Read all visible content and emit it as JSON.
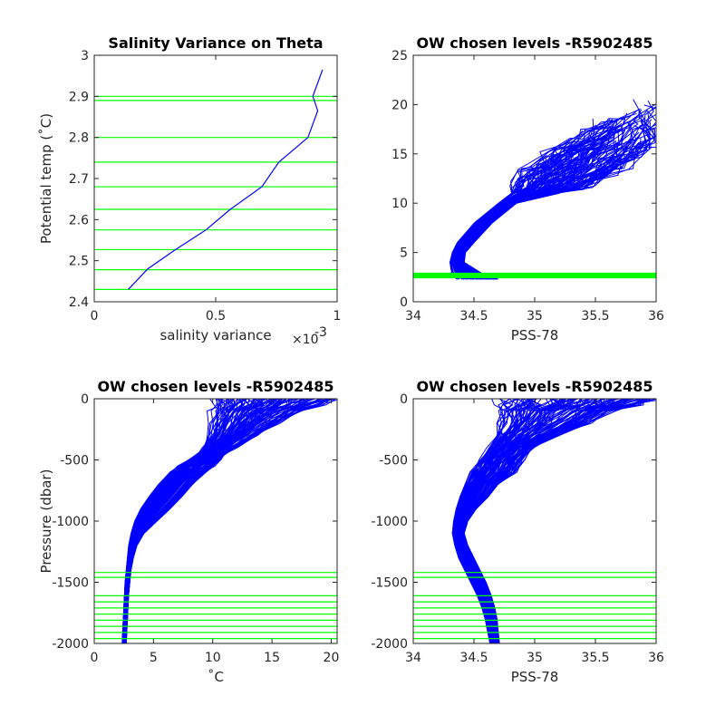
{
  "figure": {
    "colors": {
      "profile": "#0000ff",
      "level": "#00ff00",
      "axes": "#262626",
      "background": "#ffffff"
    }
  },
  "chart_data": [
    {
      "type": "line",
      "title": "Salinity Variance on Theta",
      "xlabel": "salinity variance",
      "x_exponent_label": "×10",
      "x_exponent_power": "-3",
      "ylabel": "Potential temp (˚C)",
      "xlim": [
        0,
        1
      ],
      "ylim": [
        2.4,
        3.0
      ],
      "xticks": [
        0,
        0.5,
        1
      ],
      "xtick_labels": [
        "0",
        "0.5",
        "1"
      ],
      "yticks": [
        2.4,
        2.5,
        2.6,
        2.7,
        2.8,
        2.9,
        3.0
      ],
      "ytick_labels": [
        "2.4",
        "2.5",
        "2.6",
        "2.7",
        "2.8",
        "2.9",
        "3"
      ],
      "series": [
        {
          "x": [
            0.14,
            0.22,
            0.33,
            0.46,
            0.56,
            0.69,
            0.76,
            0.88,
            0.92,
            0.9,
            0.94
          ],
          "y": [
            2.43,
            2.48,
            2.525,
            2.575,
            2.625,
            2.68,
            2.74,
            2.8,
            2.865,
            2.9,
            2.965
          ]
        }
      ],
      "chosen_levels": [
        2.43,
        2.478,
        2.527,
        2.575,
        2.625,
        2.68,
        2.74,
        2.8,
        2.89,
        2.9
      ]
    },
    {
      "type": "line",
      "title": "OW chosen levels -R5902485",
      "xlabel": "PSS-78",
      "ylabel": "",
      "xlim": [
        34,
        36
      ],
      "ylim": [
        0,
        25
      ],
      "xticks": [
        34,
        34.5,
        35,
        35.5,
        36
      ],
      "xtick_labels": [
        "34",
        "34.5",
        "35",
        "35.5",
        "36"
      ],
      "yticks": [
        0,
        5,
        10,
        15,
        20,
        25
      ],
      "ytick_labels": [
        "0",
        "5",
        "10",
        "15",
        "20",
        "25"
      ],
      "profile_envelope": {
        "T": [
          2.3,
          2.6,
          3.0,
          4.0,
          5.0,
          6.0,
          8.0,
          10.0,
          11.0,
          12.0,
          13.0,
          14.0,
          15.0,
          16.0,
          17.0,
          18.0,
          19.0,
          20.0
        ],
        "S_min": [
          34.35,
          34.33,
          34.31,
          34.3,
          34.32,
          34.36,
          34.5,
          34.7,
          34.8,
          34.85,
          34.9,
          35.0,
          35.1,
          35.25,
          35.4,
          35.55,
          35.7,
          35.82
        ],
        "S_max": [
          34.7,
          34.6,
          34.55,
          34.42,
          34.43,
          34.5,
          34.65,
          34.85,
          35.2,
          35.45,
          35.62,
          35.75,
          35.85,
          35.93,
          35.97,
          35.99,
          35.99,
          35.98
        ]
      },
      "profile_count": 120,
      "chosen_levels": [
        2.43,
        2.478,
        2.527,
        2.575,
        2.625,
        2.68,
        2.74,
        2.8,
        2.89,
        2.9
      ]
    },
    {
      "type": "line",
      "title": "OW chosen levels -R5902485",
      "xlabel": "˚C",
      "ylabel": "Pressure (dbar)",
      "xlim": [
        0,
        20.5
      ],
      "ylim": [
        -2000,
        0
      ],
      "xticks": [
        0,
        5,
        10,
        15,
        20
      ],
      "xtick_labels": [
        "0",
        "5",
        "10",
        "15",
        "20"
      ],
      "yticks": [
        0,
        -500,
        -1000,
        -1500,
        -2000
      ],
      "ytick_labels": [
        "0",
        "-500",
        "-1000",
        "-1500",
        "-2000"
      ],
      "profile_envelope": {
        "P": [
          0,
          -50,
          -100,
          -200,
          -300,
          -400,
          -450,
          -500,
          -550,
          -600,
          -700,
          -800,
          -900,
          -1000,
          -1100,
          -1200,
          -1300,
          -1400,
          -1500,
          -1600,
          -1700,
          -1800,
          -1900,
          -2000
        ],
        "v_min": [
          10.2,
          10.4,
          10.0,
          10.0,
          9.8,
          9.2,
          8.8,
          8.0,
          7.2,
          6.5,
          5.4,
          4.6,
          3.9,
          3.4,
          3.1,
          2.9,
          2.8,
          2.7,
          2.6,
          2.55,
          2.5,
          2.45,
          2.4,
          2.35
        ],
        "v_max": [
          20.4,
          19.0,
          17.5,
          15.5,
          13.8,
          12.0,
          11.0,
          10.6,
          10.0,
          9.3,
          8.3,
          7.4,
          6.4,
          5.3,
          4.2,
          3.6,
          3.3,
          3.1,
          3.0,
          2.9,
          2.85,
          2.8,
          2.75,
          2.7
        ]
      },
      "profile_count": 120,
      "chosen_levels": [
        -1420,
        -1460,
        -1610,
        -1660,
        -1710,
        -1760,
        -1810,
        -1860,
        -1910,
        -1960
      ]
    },
    {
      "type": "line",
      "title": "OW chosen levels -R5902485",
      "xlabel": "PSS-78",
      "ylabel": "",
      "xlim": [
        34,
        36
      ],
      "ylim": [
        -2000,
        0
      ],
      "xticks": [
        34,
        34.5,
        35,
        35.5,
        36
      ],
      "xtick_labels": [
        "34",
        "34.5",
        "35",
        "35.5",
        "36"
      ],
      "yticks": [
        0,
        -500,
        -1000,
        -1500,
        -2000
      ],
      "ytick_labels": [
        "0",
        "-500",
        "-1000",
        "-1500",
        "-2000"
      ],
      "profile_envelope": {
        "P": [
          0,
          -50,
          -100,
          -200,
          -300,
          -400,
          -500,
          -600,
          -700,
          -800,
          -900,
          -1000,
          -1100,
          -1200,
          -1300,
          -1400,
          -1500,
          -1600,
          -1700,
          -1800,
          -1900,
          -2000
        ],
        "v_min": [
          34.7,
          34.72,
          34.7,
          34.7,
          34.68,
          34.62,
          34.55,
          34.48,
          34.42,
          34.38,
          34.35,
          34.33,
          34.32,
          34.34,
          34.37,
          34.42,
          34.47,
          34.52,
          34.56,
          34.59,
          34.61,
          34.63
        ],
        "v_max": [
          36.0,
          35.85,
          35.65,
          35.45,
          35.2,
          35.0,
          34.9,
          34.85,
          34.7,
          34.62,
          34.52,
          34.45,
          34.42,
          34.45,
          34.5,
          34.55,
          34.6,
          34.64,
          34.67,
          34.69,
          34.7,
          34.71
        ]
      },
      "profile_count": 120,
      "chosen_levels": [
        -1420,
        -1460,
        -1610,
        -1660,
        -1710,
        -1760,
        -1810,
        -1860,
        -1910,
        -1960
      ]
    }
  ]
}
